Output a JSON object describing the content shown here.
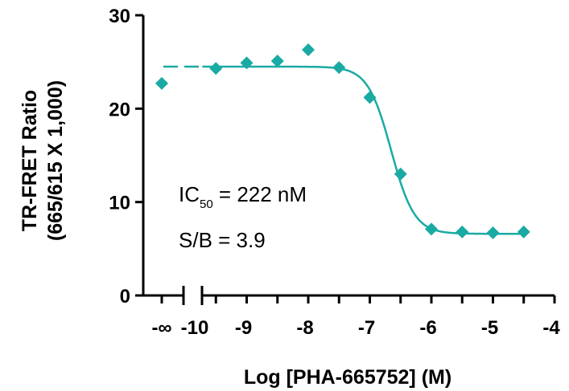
{
  "chart_data": {
    "type": "scatter",
    "x_axis": {
      "label": "Log [PHA-665752] (M)",
      "range": [
        -10.5,
        -4
      ],
      "ticks": [
        -10,
        -9,
        -8,
        -7,
        -6,
        -5,
        -4
      ],
      "tick_labels": [
        "-10",
        "-9",
        "-8",
        "-7",
        "-6",
        "-5",
        "-4"
      ],
      "break": true,
      "zero_label": "-∞"
    },
    "y_axis": {
      "label_line1": "TR-FRET Ratio",
      "label_line2": "(665/615 X 1,000)",
      "range": [
        0,
        30
      ],
      "ticks": [
        0,
        10,
        20,
        30
      ],
      "tick_labels": [
        "0",
        "10",
        "20",
        "30"
      ]
    },
    "series": [
      {
        "color": "#1aaaa4",
        "marker": "diamond",
        "zero_point": 22.7,
        "points": [
          {
            "x": -9.5,
            "y": 24.3
          },
          {
            "x": -9.0,
            "y": 24.9
          },
          {
            "x": -8.5,
            "y": 25.1
          },
          {
            "x": -8.0,
            "y": 26.3
          },
          {
            "x": -7.5,
            "y": 24.4
          },
          {
            "x": -7.0,
            "y": 21.2
          },
          {
            "x": -6.5,
            "y": 13.0
          },
          {
            "x": -6.0,
            "y": 7.1
          },
          {
            "x": -5.5,
            "y": 6.8
          },
          {
            "x": -5.0,
            "y": 6.7
          },
          {
            "x": -4.5,
            "y": 6.8
          }
        ],
        "fit": {
          "top": 24.5,
          "bottom": 6.6,
          "log_ic50": -6.654,
          "hill": 2.3
        }
      }
    ],
    "annotations": {
      "ic50_prefix": "IC",
      "ic50_sub": "50",
      "ic50_value": " = 222 nM",
      "sb": "S/B = 3.9"
    },
    "grid": false
  }
}
